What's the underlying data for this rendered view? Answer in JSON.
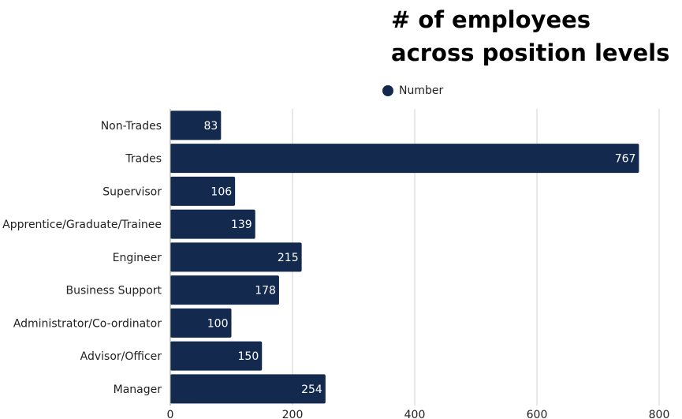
{
  "chart_data": {
    "type": "bar",
    "orientation": "horizontal",
    "title": "# of employees across position levels",
    "categories": [
      "Non-Trades",
      "Trades",
      "Supervisor",
      "Apprentice/Graduate/Trainee",
      "Engineer",
      "Business Support",
      "Administrator/Co-ordinator",
      "Advisor/Officer",
      "Manager"
    ],
    "series": [
      {
        "name": "Number",
        "values": [
          83,
          767,
          106,
          139,
          215,
          178,
          100,
          150,
          254
        ]
      }
    ],
    "xlim": [
      0,
      800
    ],
    "xticks": [
      "0",
      "200",
      "400",
      "600",
      "800"
    ],
    "grid": true,
    "legend": "top",
    "colors": {
      "bar": "#132a4e",
      "grid": "#d0d0d0"
    }
  }
}
